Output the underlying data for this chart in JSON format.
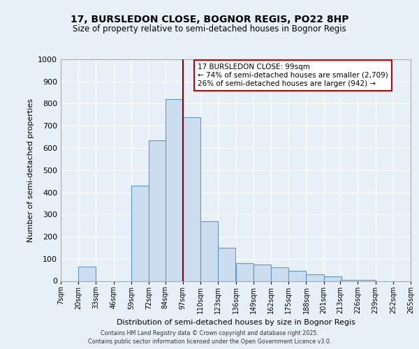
{
  "title": "17, BURSLEDON CLOSE, BOGNOR REGIS, PO22 8HP",
  "subtitle": "Size of property relative to semi-detached houses in Bognor Regis",
  "xlabel": "Distribution of semi-detached houses by size in Bognor Regis",
  "ylabel": "Number of semi-detached properties",
  "bin_labels": [
    "7sqm",
    "20sqm",
    "33sqm",
    "46sqm",
    "59sqm",
    "72sqm",
    "84sqm",
    "97sqm",
    "110sqm",
    "123sqm",
    "136sqm",
    "149sqm",
    "162sqm",
    "175sqm",
    "188sqm",
    "201sqm",
    "213sqm",
    "226sqm",
    "239sqm",
    "252sqm",
    "265sqm"
  ],
  "bin_starts": [
    7,
    20,
    33,
    46,
    59,
    72,
    84,
    97,
    110,
    123,
    136,
    149,
    162,
    175,
    188,
    201,
    213,
    226,
    239,
    252
  ],
  "values": [
    0,
    65,
    0,
    0,
    430,
    635,
    820,
    740,
    270,
    150,
    80,
    75,
    60,
    45,
    30,
    20,
    5,
    5,
    0,
    0
  ],
  "bar_color": "#ccddf0",
  "bar_edge_color": "#5b9bd5",
  "vline_x": 97,
  "vline_color": "#8b0000",
  "annotation_line1": "17 BURSLEDON CLOSE: 99sqm",
  "annotation_line2": "← 74% of semi-detached houses are smaller (2,709)",
  "annotation_line3": "26% of semi-detached houses are larger (942) →",
  "annotation_box_edge": "#cc0000",
  "ylim": [
    0,
    1000
  ],
  "yticks": [
    0,
    100,
    200,
    300,
    400,
    500,
    600,
    700,
    800,
    900,
    1000
  ],
  "bg_color": "#e8f0f7",
  "footer_line1": "Contains HM Land Registry data © Crown copyright and database right 2025.",
  "footer_line2": "Contains public sector information licensed under the Open Government Licence v3.0."
}
